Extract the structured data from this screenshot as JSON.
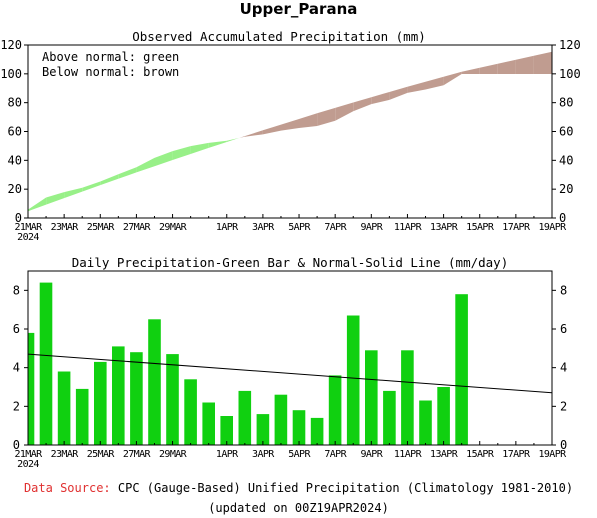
{
  "page_title": "Upper_Parana",
  "footer": {
    "source_label": "Data Source:",
    "source_text": "CPC (Gauge-Based) Unified Precipitation (Climatology 1981-2010)",
    "updated": "(updated on 00Z19APR2024)"
  },
  "colors": {
    "above": "#98f088",
    "below": "#c09c90",
    "bar": "#10d010",
    "normal_line": "#000000"
  },
  "x_ticks": [
    "21MAR\n2024",
    "23MAR",
    "25MAR",
    "27MAR",
    "29MAR",
    "1APR",
    "3APR",
    "5APR",
    "7APR",
    "9APR",
    "11APR",
    "13APR",
    "15APR",
    "17APR",
    "19APR"
  ],
  "x_tick_days": [
    0,
    2,
    4,
    6,
    8,
    11,
    13,
    15,
    17,
    19,
    21,
    23,
    25,
    27,
    29
  ],
  "chart_data": [
    {
      "type": "area",
      "title": "Observed Accumulated Precipitation (mm)",
      "annotations": [
        "Above normal: green",
        "Below normal: brown"
      ],
      "x": [
        "21MAR",
        "22MAR",
        "23MAR",
        "24MAR",
        "25MAR",
        "26MAR",
        "27MAR",
        "28MAR",
        "29MAR",
        "30MAR",
        "31MAR",
        "1APR",
        "2APR",
        "3APR",
        "4APR",
        "5APR",
        "6APR",
        "7APR",
        "8APR",
        "9APR",
        "10APR",
        "11APR",
        "12APR",
        "13APR",
        "14APR",
        "15APR",
        "16APR",
        "17APR",
        "18APR",
        "19APR"
      ],
      "series": [
        {
          "values": [
            5.8,
            14.2,
            18.0,
            21.0,
            25.3,
            30.4,
            35.2,
            41.7,
            46.4,
            49.9,
            52.1,
            53.6,
            56.4,
            58.0,
            60.6,
            62.4,
            63.8,
            67.4,
            74.1,
            79.0,
            81.9,
            86.8,
            89.1,
            92.1,
            99.9,
            99.9,
            99.9,
            99.9,
            99.9,
            99.9
          ]
        },
        {
          "values": [
            4.7,
            9.3,
            13.8,
            18.3,
            22.8,
            27.2,
            31.6,
            35.9,
            40.2,
            44.4,
            48.6,
            52.7,
            56.8,
            60.8,
            64.8,
            68.7,
            72.6,
            76.4,
            80.1,
            83.8,
            87.4,
            91.0,
            94.5,
            98.0,
            101.4,
            104.2,
            107.0,
            109.8,
            112.6,
            115.3
          ]
        }
      ],
      "ylim": [
        0,
        120
      ],
      "yticks": [
        0,
        20,
        40,
        60,
        80,
        100,
        120
      ]
    },
    {
      "type": "bar",
      "title": "Daily Precipitation-Green Bar & Normal-Solid Line (mm/day)",
      "x": [
        "21MAR",
        "22MAR",
        "23MAR",
        "24MAR",
        "25MAR",
        "26MAR",
        "27MAR",
        "28MAR",
        "29MAR",
        "30MAR",
        "31MAR",
        "1APR",
        "2APR",
        "3APR",
        "4APR",
        "5APR",
        "6APR",
        "7APR",
        "8APR",
        "9APR",
        "10APR",
        "11APR",
        "12APR",
        "13APR",
        "14APR"
      ],
      "series": [
        {
          "values": [
            5.8,
            8.4,
            3.8,
            2.9,
            4.3,
            5.1,
            4.8,
            6.5,
            4.7,
            3.4,
            2.2,
            1.5,
            2.8,
            1.6,
            2.6,
            1.8,
            1.4,
            3.6,
            6.7,
            4.9,
            2.8,
            4.9,
            2.3,
            3.0,
            7.8
          ]
        },
        {
          "x": [
            "21MAR",
            "19APR"
          ],
          "values": [
            4.7,
            2.7
          ]
        }
      ],
      "ylim": [
        0,
        9
      ],
      "yticks": [
        0,
        2,
        4,
        6,
        8
      ]
    }
  ]
}
